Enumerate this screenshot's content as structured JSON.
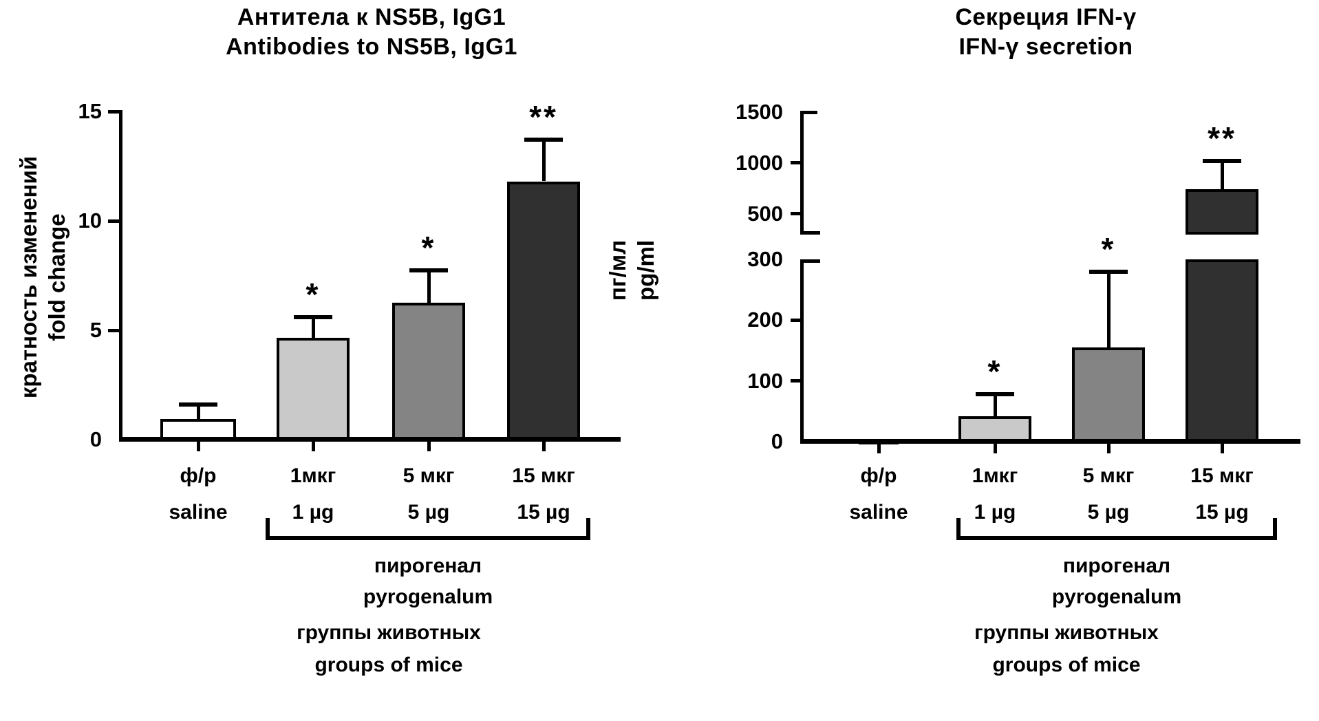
{
  "chart_data": [
    {
      "type": "bar",
      "title_ru": "Антитела к NS5B, IgG1",
      "title_en": "Antibodies to NS5B, IgG1",
      "ylabel_ru": "кратность изменений",
      "ylabel_en": "fold change",
      "xlabel_ru": "группы животных",
      "xlabel_en": "groups of mice",
      "bracket_label_ru": "пирогенал",
      "bracket_label_en": "pyrogenalum",
      "bracket_covers_groups": [
        "1мкг",
        "5 мкг",
        "15 мкг"
      ],
      "categories_ru": [
        "ф/р",
        "1мкг",
        "5 мкг",
        "15 мкг"
      ],
      "categories_en": [
        "saline",
        "1 µg",
        "5 µg",
        "15 µg"
      ],
      "values": [
        0.95,
        4.65,
        6.25,
        11.8
      ],
      "error_upper": [
        1.6,
        5.6,
        7.75,
        13.7
      ],
      "significance": [
        "",
        "*",
        "*",
        "**"
      ],
      "bar_fills": [
        "#ffffff",
        "#c9c9c9",
        "#848484",
        "#303030"
      ],
      "ylim": [
        0,
        15
      ],
      "yticks": [
        0,
        5,
        10,
        15
      ],
      "grid": false,
      "legend": false
    },
    {
      "type": "bar",
      "title_ru": "Секреция IFN-γ",
      "title_en": "IFN-γ secretion",
      "ylabel_ru": "пг/мл",
      "ylabel_en": "pg/ml",
      "xlabel_ru": "группы животных",
      "xlabel_en": "groups of mice",
      "bracket_label_ru": "пирогенал",
      "bracket_label_en": "pyrogenalum",
      "bracket_covers_groups": [
        "1мкг",
        "5 мкг",
        "15 мкг"
      ],
      "categories_ru": [
        "ф/р",
        "1мкг",
        "5 мкг",
        "15 мкг"
      ],
      "categories_en": [
        "saline",
        "1 µg",
        "5 µg",
        "15 µg"
      ],
      "values": [
        5,
        42,
        155,
        740
      ],
      "error_upper": [
        null,
        78,
        280,
        1020
      ],
      "significance": [
        "",
        "*",
        "*",
        "**"
      ],
      "bar_fills": [
        "#0a0a0a",
        "#c9c9c9",
        "#848484",
        "#303030"
      ],
      "axis_break": {
        "lower_range": [
          0,
          300
        ],
        "lower_ticks": [
          0,
          100,
          200,
          300
        ],
        "upper_range": [
          300,
          1500
        ],
        "upper_ticks": [
          500,
          1000,
          1500
        ]
      },
      "grid": false,
      "legend": false
    }
  ]
}
